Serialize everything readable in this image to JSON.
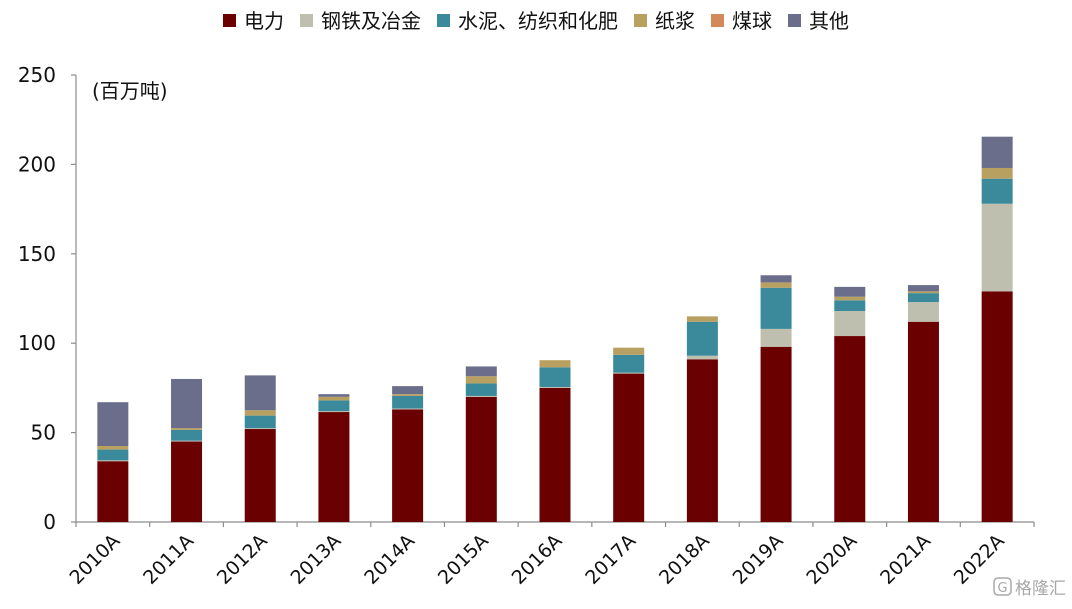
{
  "chart_data": {
    "type": "bar",
    "stacked": true,
    "title": "",
    "unit_label": "(百万吨)",
    "categories": [
      "2010A",
      "2011A",
      "2012A",
      "2013A",
      "2014A",
      "2015A",
      "2016A",
      "2017A",
      "2018A",
      "2019A",
      "2020A",
      "2021A",
      "2022A"
    ],
    "series": [
      {
        "name": "电力",
        "color": "#6b0000",
        "values": [
          34,
          45,
          52,
          61.5,
          63,
          70,
          75,
          83,
          91,
          98,
          104,
          112,
          129
        ]
      },
      {
        "name": "钢铁及冶金",
        "color": "#bfbfb0",
        "values": [
          0.5,
          0.5,
          0.5,
          0.5,
          0.5,
          0.5,
          0.5,
          0.5,
          2,
          10,
          14,
          11,
          49
        ]
      },
      {
        "name": "水泥、纺织和化肥",
        "color": "#3a8a9c",
        "values": [
          6,
          6,
          7,
          6,
          7,
          7,
          11,
          10,
          19,
          23,
          6,
          5,
          14
        ]
      },
      {
        "name": "纸浆",
        "color": "#b8a060",
        "values": [
          2,
          1,
          3,
          2,
          1,
          4,
          4,
          4,
          3,
          3,
          2,
          1,
          6
        ]
      },
      {
        "name": "煤球",
        "color": "#d4895a",
        "values": [
          0,
          0,
          0,
          0,
          0,
          0,
          0,
          0,
          0,
          0,
          0,
          0,
          0
        ]
      },
      {
        "name": "其他",
        "color": "#6a6e8a",
        "values": [
          24.5,
          27.5,
          19.5,
          1.5,
          4.5,
          5.5,
          0,
          0,
          0,
          4,
          5.5,
          3.5,
          17.5
        ]
      }
    ],
    "y_ticks": [
      0,
      50,
      100,
      150,
      200,
      250
    ],
    "ylim": [
      0,
      250
    ],
    "grid": false,
    "legend_position": "top"
  },
  "watermark": {
    "logo_glyph": "G",
    "text": "格隆汇"
  }
}
